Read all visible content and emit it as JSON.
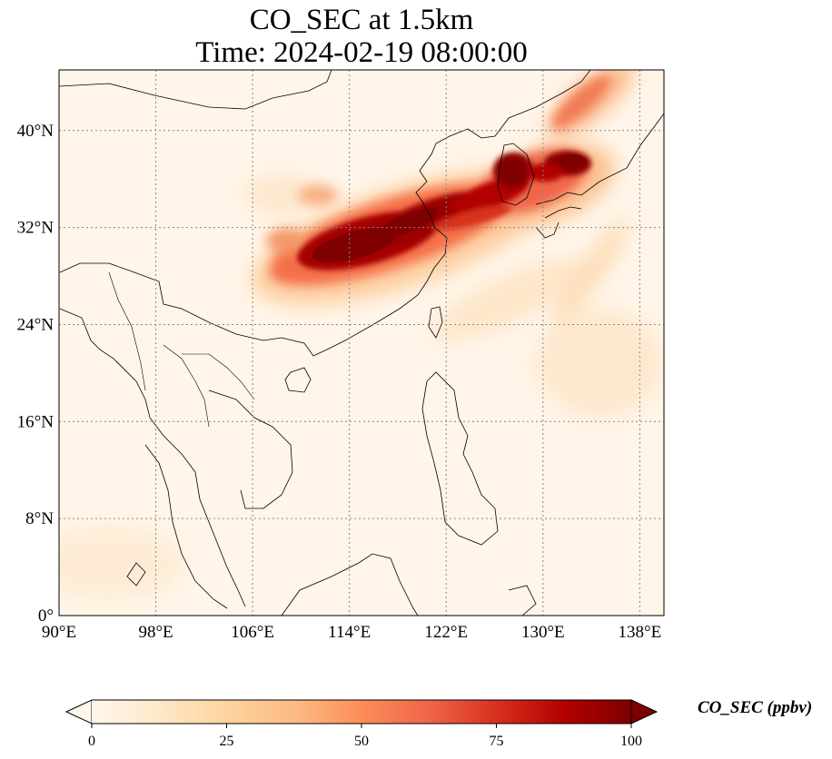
{
  "title": {
    "line1": "CO_SEC at 1.5km",
    "line2": "Time: 2024-02-19 08:00:00"
  },
  "map": {
    "projection": "PlateCarree",
    "lon_range": [
      90,
      140
    ],
    "lat_range": [
      0,
      45
    ],
    "lon_ticks": [
      "90°E",
      "98°E",
      "106°E",
      "114°E",
      "122°E",
      "130°E",
      "138°E"
    ],
    "lat_ticks": [
      "0°",
      "8°N",
      "16°N",
      "24°N",
      "32°N",
      "40°N"
    ],
    "gridlines": true,
    "gridline_style": "dotted",
    "field": "CO_SEC",
    "level": "1.5km",
    "plume_description_values": [
      {
        "lon": 118,
        "lat": 31.5,
        "value": 100
      },
      {
        "lon": 123,
        "lat": 33.5,
        "value": 100
      },
      {
        "lon": 127,
        "lat": 36.5,
        "value": 100
      },
      {
        "lon": 132,
        "lat": 37.5,
        "value": 100
      },
      {
        "lon": 128,
        "lat": 33.5,
        "value": 70
      },
      {
        "lon": 112,
        "lat": 29.5,
        "value": 60
      },
      {
        "lon": 132,
        "lat": 42,
        "value": 60
      },
      {
        "lon": 125,
        "lat": 26.5,
        "value": 25
      },
      {
        "lon": 133,
        "lat": 28.5,
        "value": 20
      }
    ]
  },
  "colorbar": {
    "label": "CO_SEC (ppbv)",
    "cmap": "OrRd",
    "range": [
      0,
      100
    ],
    "extend": "both",
    "ticks": [
      "0",
      "25",
      "50",
      "75",
      "100"
    ],
    "colors": {
      "low": "#fff7ec",
      "q25": "#fdd49e",
      "q50": "#fc8d59",
      "q75": "#d7301f",
      "high": "#7f0000"
    }
  }
}
